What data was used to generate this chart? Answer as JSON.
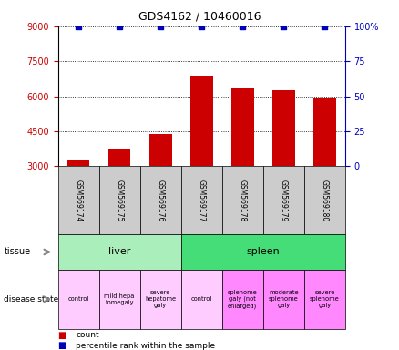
{
  "title": "GDS4162 / 10460016",
  "samples": [
    "GSM569174",
    "GSM569175",
    "GSM569176",
    "GSM569177",
    "GSM569178",
    "GSM569179",
    "GSM569180"
  ],
  "counts": [
    3300,
    3750,
    4400,
    6900,
    6350,
    6250,
    5950
  ],
  "percentile_ranks": [
    100,
    100,
    100,
    100,
    100,
    100,
    100
  ],
  "bar_color": "#cc0000",
  "dot_color": "#0000bb",
  "ylim_left": [
    3000,
    9000
  ],
  "ylim_right": [
    0,
    100
  ],
  "yticks_left": [
    3000,
    4500,
    6000,
    7500,
    9000
  ],
  "yticks_right": [
    0,
    25,
    50,
    75,
    100
  ],
  "ytick_right_labels": [
    "0",
    "25",
    "50",
    "75",
    "100%"
  ],
  "tissue_labels": [
    {
      "label": "liver",
      "start": 0,
      "end": 3,
      "color": "#aaeebb"
    },
    {
      "label": "spleen",
      "start": 3,
      "end": 7,
      "color": "#44dd77"
    }
  ],
  "disease_labels": [
    {
      "label": "control",
      "start": 0,
      "end": 1,
      "color": "#ffccff"
    },
    {
      "label": "mild hepa\ntomegaly",
      "start": 1,
      "end": 2,
      "color": "#ffccff"
    },
    {
      "label": "severe\nhepatome\ngaly",
      "start": 2,
      "end": 3,
      "color": "#ffccff"
    },
    {
      "label": "control",
      "start": 3,
      "end": 4,
      "color": "#ffccff"
    },
    {
      "label": "splenome\ngaly (not\nenlarged)",
      "start": 4,
      "end": 5,
      "color": "#ff88ff"
    },
    {
      "label": "moderate\nsplenome\ngaly",
      "start": 5,
      "end": 6,
      "color": "#ff88ff"
    },
    {
      "label": "severe\nsplenome\ngaly",
      "start": 6,
      "end": 7,
      "color": "#ff88ff"
    }
  ],
  "legend_count_label": "count",
  "legend_percentile_label": "percentile rank within the sample",
  "tissue_row_label": "tissue",
  "disease_row_label": "disease state",
  "left_axis_color": "#cc0000",
  "right_axis_color": "#0000bb",
  "sample_box_color": "#cccccc",
  "grid_color": "black",
  "background_color": "white"
}
